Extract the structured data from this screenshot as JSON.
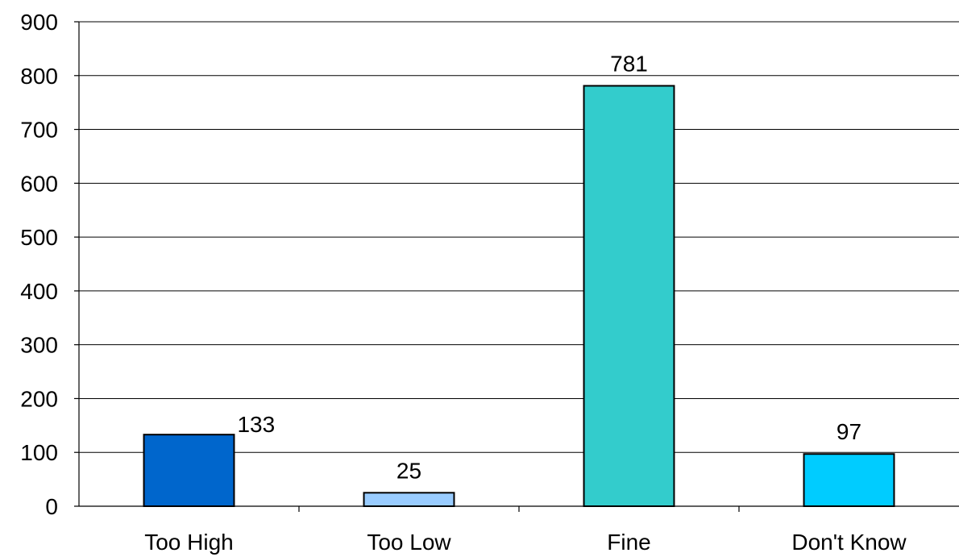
{
  "chart_data": {
    "type": "bar",
    "title": "",
    "xlabel": "",
    "ylabel": "",
    "categories": [
      "Too High",
      "Too Low",
      "Fine",
      "Don't Know"
    ],
    "values": [
      133,
      25,
      781,
      97
    ],
    "data_labels": [
      "133",
      "25",
      "781",
      "97"
    ],
    "colors": [
      "#0066CC",
      "#99CCFF",
      "#33CCCC",
      "#00CCFF"
    ],
    "ylim": [
      0,
      900
    ],
    "yticks": [
      0,
      100,
      200,
      300,
      400,
      500,
      600,
      700,
      800,
      900
    ],
    "ytick_labels": [
      "0",
      "100",
      "200",
      "300",
      "400",
      "500",
      "600",
      "700",
      "800",
      "900"
    ],
    "grid": true,
    "legend": "none"
  }
}
